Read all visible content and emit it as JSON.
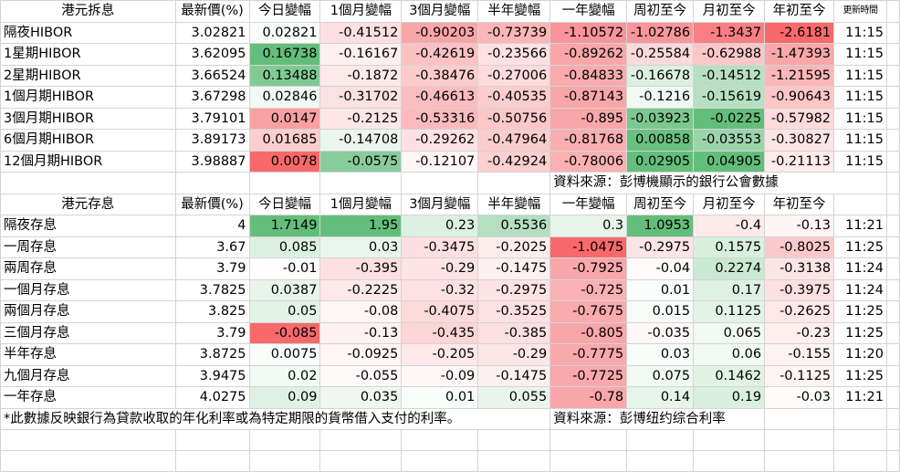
{
  "columns": [
    "最新價(%)",
    "今日變幅",
    "1個月變幅",
    "3個月變幅",
    "半年變幅",
    "一年變幅",
    "周初至今",
    "月初至今",
    "年初至今",
    "更新時間"
  ],
  "hibor": {
    "title": "港元拆息",
    "rows": [
      {
        "name": "隔夜HIBOR",
        "values": [
          "3.02821",
          "0.02821",
          "-0.41512",
          "-0.90203",
          "-0.73739",
          "-1.10572",
          "-1.02786",
          "-1.3437",
          "-2.6181",
          "11:15"
        ]
      },
      {
        "name": "1星期HIBOR",
        "values": [
          "3.62095",
          "0.16738",
          "-0.16167",
          "-0.42619",
          "-0.23566",
          "-0.89262",
          "-0.25584",
          "-0.62988",
          "-1.47393",
          "11:15"
        ]
      },
      {
        "name": "2星期HIBOR",
        "values": [
          "3.66524",
          "0.13488",
          "-0.1872",
          "-0.38476",
          "-0.27006",
          "-0.84833",
          "-0.16678",
          "-0.14512",
          "-1.21595",
          "11:15"
        ]
      },
      {
        "name": "1個月期HIBOR",
        "values": [
          "3.67298",
          "0.02846",
          "-0.31702",
          "-0.46613",
          "-0.40535",
          "-0.87143",
          "-0.1216",
          "-0.15619",
          "-0.90643",
          "11:15"
        ]
      },
      {
        "name": "3個月期HIBOR",
        "values": [
          "3.79101",
          "0.0147",
          "-0.2125",
          "-0.53316",
          "-0.50756",
          "-0.895",
          "-0.03923",
          "-0.0225",
          "-0.57982",
          "11:15"
        ]
      },
      {
        "name": "6個月期HIBOR",
        "values": [
          "3.89173",
          "0.01685",
          "-0.14708",
          "-0.29262",
          "-0.47964",
          "-0.81768",
          "0.00858",
          "-0.03553",
          "-0.30827",
          "11:15"
        ]
      },
      {
        "name": "12個月期HIBOR",
        "values": [
          "3.98887",
          "0.0078",
          "-0.0575",
          "-0.12107",
          "-0.42924",
          "-0.78006",
          "0.02905",
          "0.04905",
          "-0.21113",
          "11:15"
        ]
      }
    ],
    "source": "資料來源：彭博機顯示的銀行公會數據"
  },
  "deposit": {
    "title": "港元存息",
    "rows": [
      {
        "name": "隔夜存息",
        "values": [
          "4",
          "1.7149",
          "1.95",
          "0.23",
          "0.5536",
          "0.3",
          "1.0953",
          "-0.4",
          "-0.13",
          "11:21"
        ]
      },
      {
        "name": "一周存息",
        "values": [
          "3.67",
          "0.085",
          "0.03",
          "-0.3475",
          "-0.2025",
          "-1.0475",
          "-0.2975",
          "0.1575",
          "-0.8025",
          "11:25"
        ]
      },
      {
        "name": "兩周存息",
        "values": [
          "3.79",
          "-0.01",
          "-0.395",
          "-0.29",
          "-0.1475",
          "-0.7925",
          "-0.04",
          "0.2274",
          "-0.3138",
          "11:24"
        ]
      },
      {
        "name": "一個月存息",
        "values": [
          "3.7825",
          "0.0387",
          "-0.2225",
          "-0.32",
          "-0.2975",
          "-0.725",
          "0.01",
          "0.17",
          "-0.3975",
          "11:24"
        ]
      },
      {
        "name": "兩個月存息",
        "values": [
          "3.825",
          "0.05",
          "-0.08",
          "-0.4075",
          "-0.3525",
          "-0.7675",
          "0.015",
          "0.1125",
          "-0.2625",
          "11:25"
        ]
      },
      {
        "name": "三個月存息",
        "values": [
          "3.79",
          "-0.085",
          "-0.13",
          "-0.435",
          "-0.385",
          "-0.805",
          "-0.035",
          "0.065",
          "-0.23",
          "11:25"
        ]
      },
      {
        "name": "半年存息",
        "values": [
          "3.8725",
          "0.0075",
          "-0.0925",
          "-0.205",
          "-0.29",
          "-0.7775",
          "0.03",
          "0.06",
          "-0.155",
          "11:20"
        ]
      },
      {
        "name": "九個月存息",
        "values": [
          "3.9475",
          "0.02",
          "-0.055",
          "-0.09",
          "-0.1475",
          "-0.7725",
          "0.075",
          "0.1462",
          "-0.1125",
          "11:25"
        ]
      },
      {
        "name": "一年存息",
        "values": [
          "4.0275",
          "0.09",
          "0.035",
          "0.01",
          "0.055",
          "-0.78",
          "0.14",
          "0.19",
          "-0.03",
          "11:21"
        ]
      }
    ],
    "note": "*此數據反映銀行為貸款收取的年化利率或為特定期限的貨幣借入支付的利率。",
    "source": "資料來源：彭博纽约综合利率"
  },
  "cell_colors": {
    "hibor": [
      [
        "#ffffff",
        "#f8fdf9",
        "#fcdfe0",
        "#f9a6a9",
        "#fbb6b8",
        "#f8949a",
        "#f8969c",
        "#f97f84",
        "#f8696b"
      ],
      [
        "#ffffff",
        "#63be7b",
        "#fef0f0",
        "#fbc2c4",
        "#fde1e2",
        "#f9a6a9",
        "#fadadb",
        "#fbc7c9",
        "#f9a7aa"
      ],
      [
        "#ffffff",
        "#81ca94",
        "#fde9ea",
        "#fccccd",
        "#fddbdc",
        "#f9aaad",
        "#dcf0e1",
        "#b7e0c2",
        "#fbb6b8"
      ],
      [
        "#ffffff",
        "#f1f9f3",
        "#fce1e2",
        "#fbbdbf",
        "#fccdce",
        "#f9a6a9",
        "#f0f9f2",
        "#b7e0c2",
        "#fcc6c7"
      ],
      [
        "#ffffff",
        "#f9a0a3",
        "#fde6e7",
        "#fbbbbd",
        "#fcc7c9",
        "#f9a6a9",
        "#7bc78f",
        "#63be7b",
        "#fddadb"
      ],
      [
        "#ffffff",
        "#fbcdce",
        "#ebf6ee",
        "#fde1e2",
        "#fbcccd",
        "#f9aeb1",
        "#69c07f",
        "#9bd4ab",
        "#fde4e4"
      ],
      [
        "#ffffff",
        "#f8696b",
        "#89cc9b",
        "#fef6f6",
        "#fccfd0",
        "#f9b1b3",
        "#63be7b",
        "#63be7b",
        "#feebeb"
      ]
    ],
    "deposit": [
      [
        "#ffffff",
        "#63be7b",
        "#63be7b",
        "#dcf0e1",
        "#b4dfc0",
        "#e6f4ea",
        "#63be7b",
        "#fdeaea",
        "#fef4f4"
      ],
      [
        "#ffffff",
        "#dcf0e1",
        "#eaf6ed",
        "#fcdfe0",
        "#fdeeee",
        "#f8696b",
        "#fce5e6",
        "#d8efde",
        "#fbc9cb"
      ],
      [
        "#ffffff",
        "#fefcfc",
        "#fcdfe0",
        "#fde3e4",
        "#fdf0f0",
        "#f9a7aa",
        "#fefafa",
        "#c9e9d2",
        "#fce4e5"
      ],
      [
        "#ffffff",
        "#e8f5eb",
        "#fde9ea",
        "#fde1e2",
        "#fde3e4",
        "#f9b1b3",
        "#fafdfb",
        "#dff1e4",
        "#fcdfe0"
      ],
      [
        "#ffffff",
        "#e4f3e8",
        "#fef5f5",
        "#fcd9da",
        "#fde1e2",
        "#f9abae",
        "#f8fcf9",
        "#e4f3e8",
        "#fde8e9"
      ],
      [
        "#ffffff",
        "#f8696b",
        "#fef1f1",
        "#fcd5d7",
        "#fcdfe0",
        "#f9a6a9",
        "#fef7f7",
        "#f1f9f3",
        "#feeeee"
      ],
      [
        "#ffffff",
        "#f9fdfa",
        "#fef5f5",
        "#fde9ea",
        "#fde6e7",
        "#f9a8ab",
        "#f7fcf8",
        "#f0f9f2",
        "#fef2f2"
      ],
      [
        "#ffffff",
        "#f2faf4",
        "#fef9f9",
        "#fef7f7",
        "#fdf0f0",
        "#f9a8ab",
        "#f0f9f2",
        "#e2f3e6",
        "#fef4f4"
      ],
      [
        "#ffffff",
        "#dff1e4",
        "#eef8f1",
        "#f9fdfa",
        "#e9f5ec",
        "#f9a7aa",
        "#e6f4ea",
        "#d9f0df",
        "#fefbfb"
      ]
    ]
  }
}
